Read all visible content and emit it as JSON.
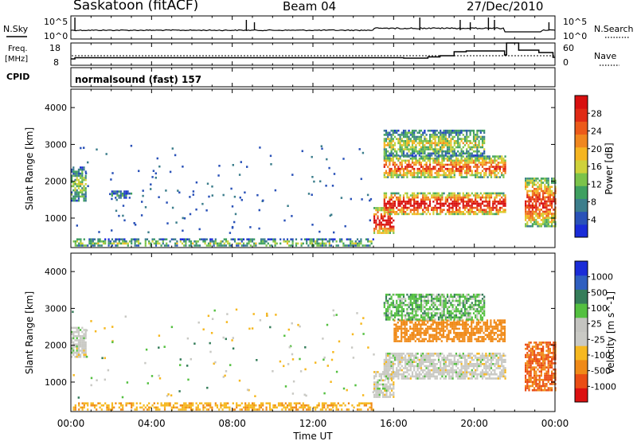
{
  "header": {
    "station": "Saskatoon (fitACF)",
    "beam": "Beam 04",
    "date": "27/Dec/2010"
  },
  "left_labels": {
    "nsky": "N.Sky",
    "freq": "Freq.",
    "mhz": "[MHz]",
    "cpid": "CPID"
  },
  "right_labels": {
    "nsearch": "N.Search",
    "nave": "Nave"
  },
  "strip_ticks": {
    "noise_left": [
      "10^5",
      "10^0"
    ],
    "noise_right": [
      "10^5",
      "10^0"
    ],
    "freq_left": [
      "18",
      "8"
    ],
    "nave_right": [
      "60",
      "0"
    ]
  },
  "cpid_text": "normalsound (fast) 157",
  "colors": {
    "power_scale": [
      "#1a2cd8",
      "#2a52b8",
      "#3c7e8c",
      "#3fa060",
      "#7bc34a",
      "#cfd23a",
      "#f5b521",
      "#f0871f",
      "#ec5a1a",
      "#e02a15",
      "#d81010"
    ],
    "velocity_scale": [
      "#1a2cd8",
      "#2f5fc0",
      "#357d5a",
      "#54c040",
      "#c4c4c0",
      "#c9c9c4",
      "#f6b820",
      "#f08a18",
      "#ea4d14",
      "#dc1010"
    ]
  },
  "chart_data": [
    {
      "type": "line",
      "panel": "noise",
      "series": [
        {
          "name": "N.Sky"
        },
        {
          "name": "N.Search"
        }
      ],
      "ylabel_left": "N.Sky",
      "ylabel_right": "N.Search",
      "yscale": "log",
      "ylim": [
        1,
        100000
      ]
    },
    {
      "type": "line",
      "panel": "frequency-nave",
      "series": [
        {
          "name": "Freq."
        },
        {
          "name": "Nave"
        }
      ],
      "ylabel_left": "Freq. [MHz]",
      "ylim_left": [
        8,
        18
      ],
      "ylabel_right": "Nave",
      "ylim_right": [
        0,
        60
      ]
    },
    {
      "type": "heatmap",
      "panel": "power",
      "title": "",
      "xlabel": "",
      "ylabel": "Slant Range [km]",
      "ylim": [
        200,
        4500
      ],
      "y_ticks": [
        "1000",
        "2000",
        "3000",
        "4000"
      ],
      "x_range_hours": [
        0,
        24
      ],
      "colorbar": {
        "label": "Power [dB]",
        "range": [
          0,
          32
        ],
        "ticks": [
          "4",
          "8",
          "12",
          "16",
          "20",
          "24",
          "28"
        ]
      },
      "echo_regions": [
        {
          "t0": 0.0,
          "t1": 0.7,
          "r0": 1500,
          "r1": 2400,
          "level": 0.3
        },
        {
          "t0": 0.1,
          "t1": 15.0,
          "r0": 250,
          "r1": 450,
          "level": 0.3
        },
        {
          "t0": 2.0,
          "t1": 3.0,
          "r0": 1550,
          "r1": 1750,
          "level": 0.2
        },
        {
          "t0": 15.0,
          "t1": 16.0,
          "r0": 600,
          "r1": 1300,
          "level": 0.8
        },
        {
          "t0": 15.5,
          "t1": 21.5,
          "r0": 1100,
          "r1": 1700,
          "level": 0.75
        },
        {
          "t0": 15.5,
          "t1": 21.5,
          "r0": 2100,
          "r1": 2700,
          "level": 0.6
        },
        {
          "t0": 15.5,
          "t1": 20.5,
          "r0": 2700,
          "r1": 3400,
          "level": 0.35
        },
        {
          "t0": 22.5,
          "t1": 24.0,
          "r0": 800,
          "r1": 2100,
          "level": 0.65
        }
      ]
    },
    {
      "type": "heatmap",
      "panel": "velocity",
      "xlabel": "Time UT",
      "ylabel": "Slant Range [km]",
      "ylim": [
        200,
        4500
      ],
      "y_ticks": [
        "1000",
        "2000",
        "3000",
        "4000"
      ],
      "x_range_hours": [
        0,
        24
      ],
      "x_ticks": [
        "00:00",
        "04:00",
        "08:00",
        "12:00",
        "16:00",
        "20:00",
        "00:00"
      ],
      "colorbar": {
        "label": "Velocity [m s^-1]",
        "ticks": [
          "1000",
          "500",
          "100",
          "25",
          "-25",
          "-100",
          "-500",
          "-1000"
        ]
      },
      "echo_regions": [
        {
          "t0": 0.0,
          "t1": 0.7,
          "r0": 1700,
          "r1": 2500,
          "vel": 0
        },
        {
          "t0": 0.1,
          "t1": 15.0,
          "r0": 250,
          "r1": 450,
          "vel": -90
        },
        {
          "t0": 15.0,
          "t1": 16.0,
          "r0": 600,
          "r1": 1300,
          "vel": 0
        },
        {
          "t0": 15.5,
          "t1": 21.5,
          "r0": 1100,
          "r1": 1800,
          "vel": 0
        },
        {
          "t0": 16.0,
          "t1": 21.5,
          "r0": 2100,
          "r1": 2700,
          "vel": -250
        },
        {
          "t0": 15.5,
          "t1": 20.5,
          "r0": 2700,
          "r1": 3400,
          "vel": 40
        },
        {
          "t0": 22.5,
          "t1": 24.0,
          "r0": 800,
          "r1": 2100,
          "vel": -300
        }
      ]
    }
  ]
}
